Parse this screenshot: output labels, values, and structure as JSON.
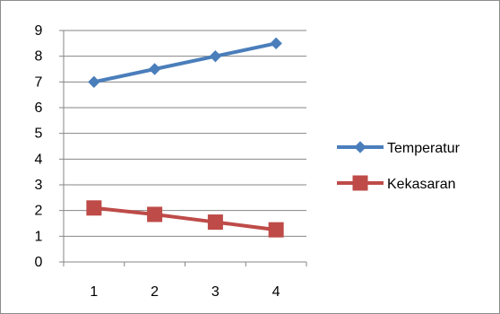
{
  "chart_data": {
    "type": "line",
    "categories": [
      "1",
      "2",
      "3",
      "4"
    ],
    "yticks": [
      "0",
      "1",
      "2",
      "3",
      "4",
      "5",
      "6",
      "7",
      "8",
      "9"
    ],
    "ylim": [
      0,
      9
    ],
    "grid": "horizontal",
    "legend_position": "right",
    "series": [
      {
        "name": "Temperatur",
        "values": [
          7,
          7.5,
          8,
          8.5
        ],
        "color": "#4a7ebb",
        "marker": "diamond"
      },
      {
        "name": "Kekasaran",
        "values": [
          2.1,
          1.85,
          1.55,
          1.25
        ],
        "color": "#be4b48",
        "marker": "square"
      }
    ]
  }
}
